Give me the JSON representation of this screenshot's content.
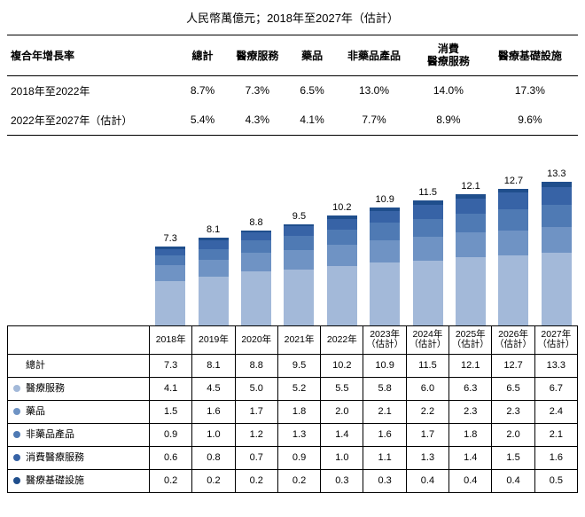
{
  "title": "人民幣萬億元；2018年至2027年（估計）",
  "cagr": {
    "header": [
      "複合年增長率",
      "總計",
      "醫療服務",
      "藥品",
      "非藥品產品",
      "消費\n醫療服務",
      "醫療基礎設施"
    ],
    "rows": [
      {
        "label": "2018年至2022年",
        "values": [
          "8.7%",
          "7.3%",
          "6.5%",
          "13.0%",
          "14.0%",
          "17.3%"
        ]
      },
      {
        "label": "2022年至2027年（估計）",
        "values": [
          "5.4%",
          "4.3%",
          "4.1%",
          "7.7%",
          "8.9%",
          "9.6%"
        ]
      }
    ]
  },
  "chart": {
    "type": "stacked-bar",
    "max_value": 14,
    "colors": {
      "medical_services": "#a3b9d9",
      "pharma": "#6f93c4",
      "non_pharma": "#4f7ab4",
      "consumer": "#3763a6",
      "infra": "#1f4e8c"
    },
    "years": [
      {
        "label": "2018年",
        "est": false,
        "total": 7.3,
        "stack": [
          4.1,
          1.5,
          0.9,
          0.6,
          0.2
        ]
      },
      {
        "label": "2019年",
        "est": false,
        "total": 8.1,
        "stack": [
          4.5,
          1.6,
          1.0,
          0.8,
          0.2
        ]
      },
      {
        "label": "2020年",
        "est": false,
        "total": 8.8,
        "stack": [
          5.0,
          1.7,
          1.2,
          0.7,
          0.2
        ]
      },
      {
        "label": "2021年",
        "est": false,
        "total": 9.5,
        "stack": [
          5.2,
          1.8,
          1.3,
          0.9,
          0.2
        ]
      },
      {
        "label": "2022年",
        "est": false,
        "total": 10.2,
        "stack": [
          5.5,
          2.0,
          1.4,
          1.0,
          0.3
        ]
      },
      {
        "label": "2023年",
        "est": true,
        "total": 10.9,
        "stack": [
          5.8,
          2.1,
          1.6,
          1.1,
          0.3
        ]
      },
      {
        "label": "2024年",
        "est": true,
        "total": 11.5,
        "stack": [
          6.0,
          2.2,
          1.7,
          1.3,
          0.4
        ]
      },
      {
        "label": "2025年",
        "est": true,
        "total": 12.1,
        "stack": [
          6.3,
          2.3,
          1.8,
          1.4,
          0.4
        ]
      },
      {
        "label": "2026年",
        "est": true,
        "total": 12.7,
        "stack": [
          6.5,
          2.3,
          2.0,
          1.5,
          0.4
        ]
      },
      {
        "label": "2027年",
        "est": true,
        "total": 13.3,
        "stack": [
          6.7,
          2.4,
          2.1,
          1.6,
          0.5
        ]
      }
    ],
    "est_suffix": "（估計）"
  },
  "dataRows": [
    {
      "label": "總計",
      "bullet": null,
      "values": [
        "7.3",
        "8.1",
        "8.8",
        "9.5",
        "10.2",
        "10.9",
        "11.5",
        "12.1",
        "12.7",
        "13.3"
      ]
    },
    {
      "label": "醫療服務",
      "bullet": "medical_services",
      "values": [
        "4.1",
        "4.5",
        "5.0",
        "5.2",
        "5.5",
        "5.8",
        "6.0",
        "6.3",
        "6.5",
        "6.7"
      ]
    },
    {
      "label": "藥品",
      "bullet": "pharma",
      "values": [
        "1.5",
        "1.6",
        "1.7",
        "1.8",
        "2.0",
        "2.1",
        "2.2",
        "2.3",
        "2.3",
        "2.4"
      ]
    },
    {
      "label": "非藥品產品",
      "bullet": "non_pharma",
      "values": [
        "0.9",
        "1.0",
        "1.2",
        "1.3",
        "1.4",
        "1.6",
        "1.7",
        "1.8",
        "2.0",
        "2.1"
      ]
    },
    {
      "label": "消費醫療服務",
      "bullet": "consumer",
      "values": [
        "0.6",
        "0.8",
        "0.7",
        "0.9",
        "1.0",
        "1.1",
        "1.3",
        "1.4",
        "1.5",
        "1.6"
      ]
    },
    {
      "label": "醫療基礎設施",
      "bullet": "infra",
      "values": [
        "0.2",
        "0.2",
        "0.2",
        "0.2",
        "0.3",
        "0.3",
        "0.4",
        "0.4",
        "0.4",
        "0.5"
      ]
    }
  ]
}
